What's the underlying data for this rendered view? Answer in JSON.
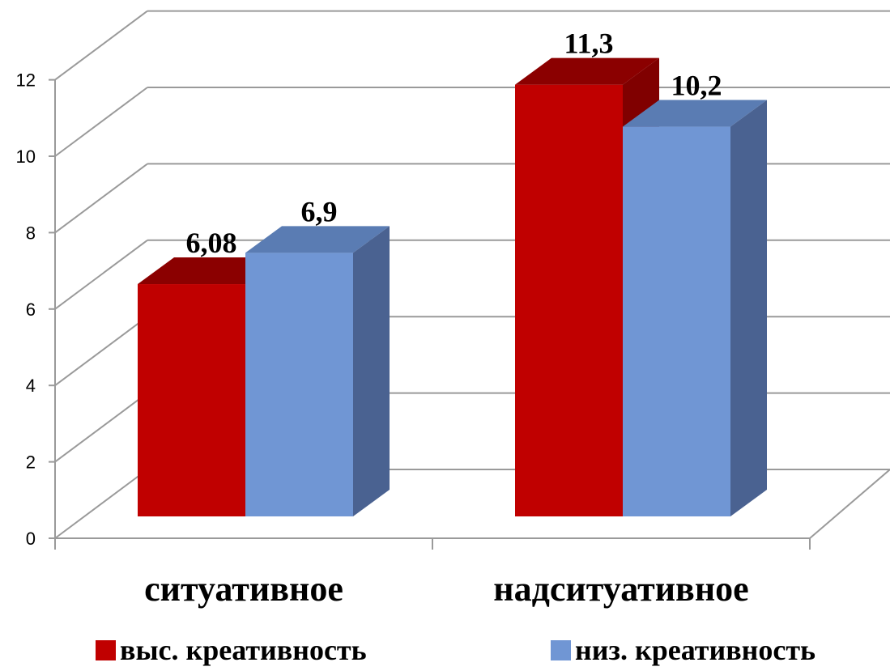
{
  "chart_data": {
    "type": "bar",
    "categories": [
      "ситуативное",
      "надситуативное"
    ],
    "series": [
      {
        "name": "выс. креативность",
        "values": [
          6.08,
          11.3
        ],
        "labels": [
          "6,08",
          "11,3"
        ],
        "color": "#C00000",
        "top_color": "#8B0000",
        "side_color": "#800000"
      },
      {
        "name": "низ. креативность",
        "values": [
          6.9,
          10.2
        ],
        "labels": [
          "6,9",
          "10,2"
        ],
        "color": "#7096D4",
        "top_color": "#5A7CB3",
        "side_color": "#4A6291"
      }
    ],
    "ylim": [
      0,
      12
    ],
    "yticks": [
      "0",
      "2",
      "4",
      "6",
      "8",
      "10",
      "12"
    ],
    "grid": true,
    "legend": "bottom",
    "style": "3d-clustered-column"
  }
}
